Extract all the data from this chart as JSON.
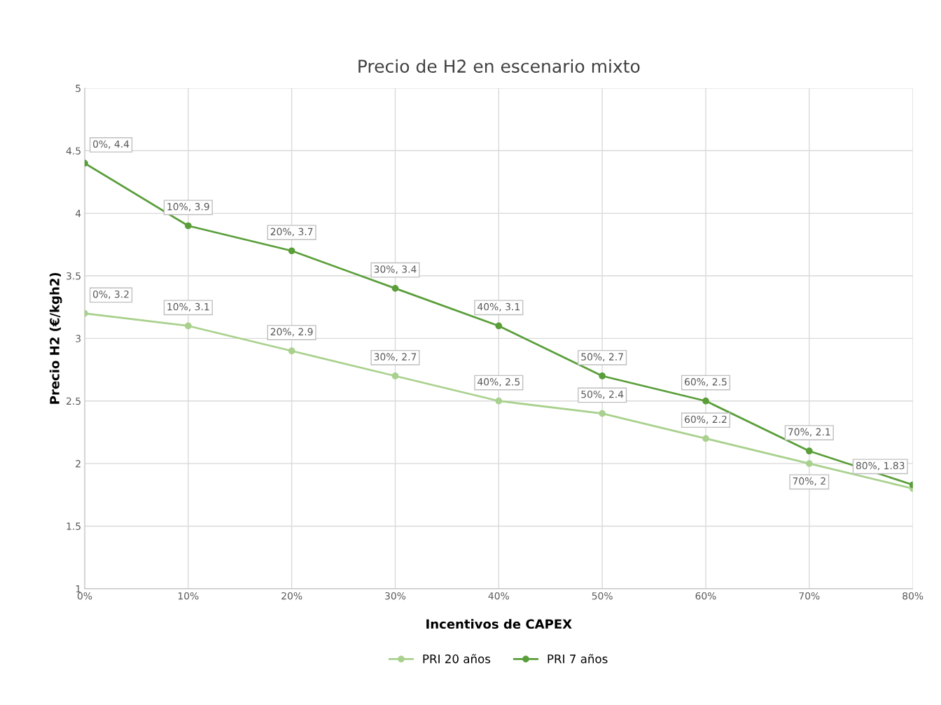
{
  "chart_data": {
    "type": "line",
    "title": "Precio de H2 en escenario mixto",
    "xlabel": "Incentivos de CAPEX",
    "ylabel": "Precio H2 (€/kgh2)",
    "categories": [
      "0%",
      "10%",
      "20%",
      "30%",
      "40%",
      "50%",
      "60%",
      "70%",
      "80%"
    ],
    "series": [
      {
        "name": "PRI 20 años",
        "color": "#a9d18e",
        "values": [
          3.2,
          3.1,
          2.9,
          2.7,
          2.5,
          2.4,
          2.2,
          2.0,
          1.8
        ],
        "value_labels": [
          "0%, 3.2",
          "10%, 3.1",
          "20%, 2.9",
          "30%, 2.7",
          "40%, 2.5",
          "50%, 2.4",
          "60%, 2.2",
          "70%, 2",
          null
        ]
      },
      {
        "name": "PRI 7 años",
        "color": "#5a9e3a",
        "values": [
          4.4,
          3.9,
          3.7,
          3.4,
          3.1,
          2.7,
          2.5,
          2.1,
          1.83
        ],
        "value_labels": [
          "0%, 4.4",
          "10%, 3.9",
          "20%, 3.7",
          "30%, 3.4",
          "40%, 3.1",
          "50%, 2.7",
          "60%, 2.5",
          "70%, 2.1",
          "80%, 1.83"
        ]
      }
    ],
    "ylim": [
      1,
      5
    ],
    "yticks": [
      1,
      1.5,
      2,
      2.5,
      3,
      3.5,
      4,
      4.5,
      5
    ],
    "grid": true,
    "legend": "bottom",
    "marker": "circle",
    "line_style": "solid"
  }
}
